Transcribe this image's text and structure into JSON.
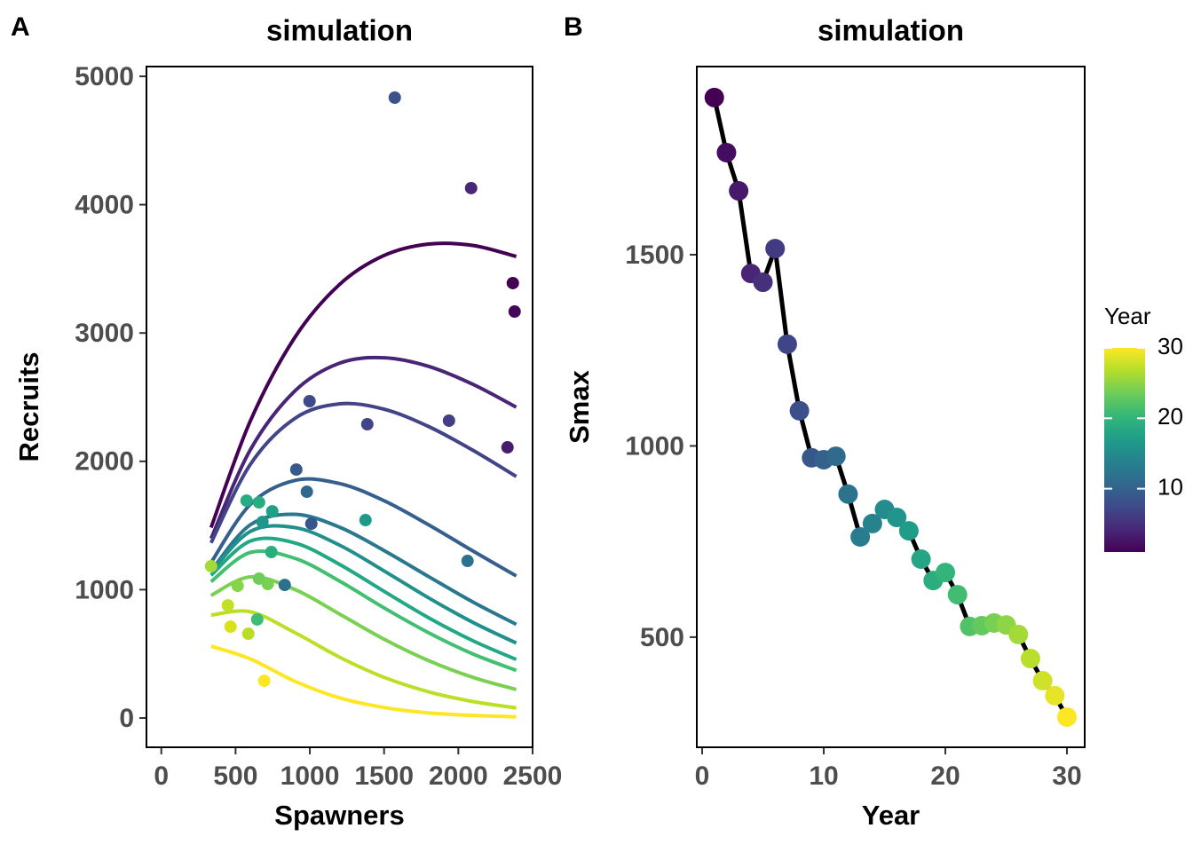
{
  "chart_data": [
    {
      "type": "scatter",
      "tag": "A",
      "title": "simulation",
      "x_label": "Spawners",
      "y_label": "Recruits",
      "xlim": [
        -100,
        2500
      ],
      "ylim": [
        -228,
        5076
      ],
      "xticks": [
        0,
        500,
        1000,
        1500,
        2000,
        2500
      ],
      "yticks": [
        0,
        1000,
        2000,
        3000,
        4000,
        5000
      ],
      "x": [
        1572,
        2086,
        2367,
        2379,
        998,
        1937,
        1387,
        2331,
        909,
        980,
        574,
        658,
        747,
        1375,
        1010,
        681,
        741,
        2062,
        335,
        831,
        658,
        717,
        514,
        448,
        646,
        466,
        586,
        693
      ],
      "values": [
        4834,
        4129,
        3389,
        3167,
        2469,
        2317,
        2289,
        2109,
        1936,
        1763,
        1694,
        1680,
        1611,
        1542,
        1514,
        1528,
        1293,
        1224,
        1183,
        1037,
        1086,
        1044,
        1030,
        878,
        768,
        712,
        657,
        290
      ],
      "colors": [
        "#3b528b",
        "#482878",
        "#440154",
        "#46075a",
        "#3e4a89",
        "#433e85",
        "#414487",
        "#481b6d",
        "#38598c",
        "#31688e",
        "#25ac82",
        "#27ad81",
        "#1fa088",
        "#1f9a8a",
        "#39568c",
        "#1f968b",
        "#29af7f",
        "#2c728e",
        "#a5db36",
        "#2d708e",
        "#6ccd5a",
        "#7ad151",
        "#86d549",
        "#c2df23",
        "#3dbc74",
        "#d8e219",
        "#b8de29",
        "#fde725"
      ],
      "curve_x": [
        335,
        600,
        900,
        1200,
        1500,
        1800,
        2100,
        2390
      ],
      "lines": [
        {
          "color": "#440154",
          "values": [
            1484,
            2316,
            2967,
            3378,
            3604,
            3693,
            3682,
            3596
          ]
        },
        {
          "color": "#482576",
          "values": [
            1399,
            2091,
            2549,
            2765,
            2807,
            2740,
            2599,
            2422
          ]
        },
        {
          "color": "#414487",
          "values": [
            1365,
            1977,
            2335,
            2448,
            2406,
            2271,
            2085,
            1882
          ]
        },
        {
          "color": "#35608d",
          "values": [
            1211,
            1665,
            1851,
            1827,
            1693,
            1505,
            1300,
            1107
          ]
        },
        {
          "color": "#2a788e",
          "values": [
            1148,
            1506,
            1587,
            1487,
            1305,
            1102,
            903,
            730
          ]
        },
        {
          "color": "#21908c",
          "values": [
            1139,
            1454,
            1484,
            1347,
            1146,
            936,
            744,
            584
          ]
        },
        {
          "color": "#22a884",
          "values": [
            1112,
            1379,
            1364,
            1197,
            987,
            781,
            601,
            456
          ]
        },
        {
          "color": "#43bf71",
          "values": [
            1063,
            1290,
            1244,
            1067,
            858,
            664,
            498,
            371
          ]
        },
        {
          "color": "#7ad151",
          "values": [
            955,
            1100,
            1001,
            810,
            614,
            447,
            316,
            222
          ]
        },
        {
          "color": "#bbdf27",
          "values": [
            802,
            828,
            665,
            474,
            317,
            204,
            128,
            79
          ]
        },
        {
          "color": "#fde725",
          "values": [
            560,
            460,
            286,
            157,
            82,
            40,
            20,
            10
          ]
        }
      ]
    },
    {
      "type": "line",
      "tag": "B",
      "title": "simulation",
      "x_label": "Year",
      "y_label": "Smax",
      "xlim": [
        -0.44,
        31.46
      ],
      "ylim": [
        212,
        1992
      ],
      "xticks": [
        0,
        10,
        20,
        30
      ],
      "yticks": [
        500,
        1000,
        1500
      ],
      "color": "#000000",
      "x": [
        1,
        2,
        3,
        4,
        5,
        6,
        7,
        8,
        9,
        10,
        11,
        12,
        13,
        14,
        15,
        16,
        17,
        18,
        19,
        20,
        21,
        22,
        23,
        24,
        25,
        26,
        27,
        28,
        29,
        30
      ],
      "values": [
        1911,
        1767,
        1667,
        1451,
        1428,
        1516,
        1266,
        1092,
        969,
        964,
        973,
        874,
        762,
        797,
        834,
        813,
        778,
        704,
        648,
        669,
        611,
        528,
        530,
        537,
        532,
        507,
        444,
        386,
        347,
        291
      ],
      "colorbar": {
        "title": "Year",
        "lim": [
          1,
          30
        ],
        "ticks": [
          10,
          20,
          30
        ],
        "colors": [
          "#440154",
          "#482878",
          "#3e4a89",
          "#31688e",
          "#26828e",
          "#1f9e89",
          "#35b779",
          "#6dcd59",
          "#b4de2c",
          "#fde725"
        ]
      }
    }
  ]
}
